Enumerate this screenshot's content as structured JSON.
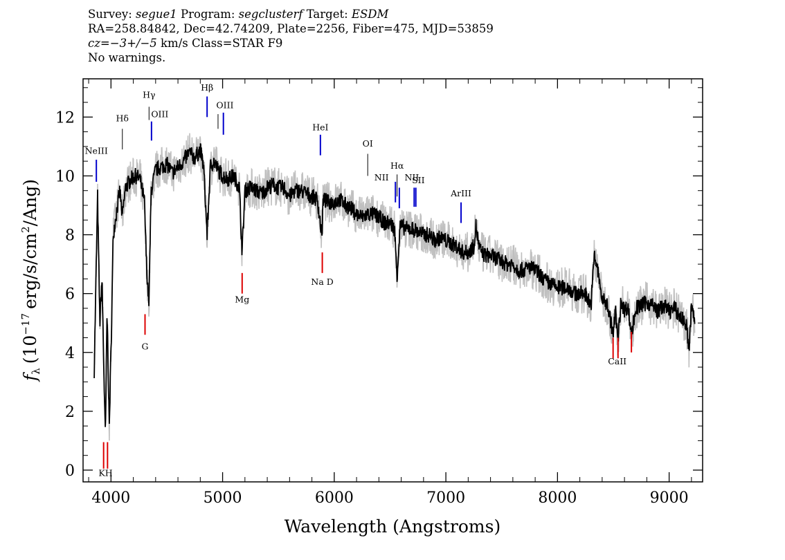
{
  "header": {
    "line1": {
      "survey_label": "Survey:",
      "survey": "segue1",
      "program_label": "Program:",
      "program": "segclusterf",
      "target_label": "Target:",
      "target": "ESDM"
    },
    "line2": "RA=258.84842, Dec=42.74209, Plate=2256, Fiber=475, MJD=53859",
    "line3": {
      "cz": "cz=−3+/−5",
      "units": "km/s",
      "class": "Class=STAR F9"
    },
    "line4": "No warnings."
  },
  "colors": {
    "flux": "#000000",
    "error": "#c0c0c0",
    "emission": "#0000cc",
    "absorption": "#dd0000",
    "neutral": "#000000"
  },
  "chart_data": {
    "type": "line",
    "xlabel": "Wavelength (Angstroms)",
    "ylabel_parts": {
      "f": "f",
      "sub": "λ",
      "pre": "(10",
      "exp": "−17",
      "mid": "erg/s/cm",
      "exp2": "2",
      "post": "/Ang)"
    },
    "xlim": [
      3750,
      9300
    ],
    "ylim": [
      -0.4,
      13.3
    ],
    "x_ticks": [
      4000,
      5000,
      6000,
      7000,
      8000,
      9000
    ],
    "x_tick_labels": [
      "4000",
      "5000",
      "6000",
      "7000",
      "8000",
      "9000"
    ],
    "y_ticks": [
      0,
      2,
      4,
      6,
      8,
      10,
      12
    ],
    "y_tick_labels": [
      "0",
      "2",
      "4",
      "6",
      "8",
      "10",
      "12"
    ],
    "series": [
      {
        "role": "flux",
        "x": [
          3850,
          3880,
          3900,
          3920,
          3935,
          3950,
          3965,
          3985,
          4000,
          4020,
          4050,
          4080,
          4101,
          4130,
          4180,
          4220,
          4260,
          4300,
          4320,
          4340,
          4360,
          4400,
          4450,
          4500,
          4550,
          4600,
          4650,
          4700,
          4750,
          4800,
          4830,
          4861,
          4890,
          4920,
          4960,
          5000,
          5050,
          5100,
          5150,
          5175,
          5200,
          5250,
          5300,
          5350,
          5400,
          5450,
          5500,
          5550,
          5600,
          5650,
          5700,
          5750,
          5800,
          5850,
          5890,
          5900,
          5950,
          6000,
          6050,
          6100,
          6150,
          6200,
          6250,
          6300,
          6350,
          6400,
          6450,
          6500,
          6540,
          6563,
          6590,
          6650,
          6700,
          6750,
          6800,
          6850,
          6900,
          6950,
          7000,
          7050,
          7100,
          7150,
          7200,
          7250,
          7270,
          7300,
          7350,
          7400,
          7450,
          7500,
          7550,
          7600,
          7650,
          7700,
          7750,
          7800,
          7850,
          7900,
          7950,
          8000,
          8050,
          8100,
          8150,
          8200,
          8250,
          8300,
          8330,
          8360,
          8400,
          8450,
          8498,
          8520,
          8542,
          8570,
          8600,
          8630,
          8662,
          8700,
          8750,
          8800,
          8850,
          8900,
          8950,
          9000,
          9050,
          9100,
          9150,
          9180,
          9200,
          9230
        ],
        "y": [
          3.4,
          9.3,
          5.0,
          6.5,
          3.6,
          1.1,
          5.4,
          1.5,
          4.0,
          8.0,
          8.8,
          9.5,
          8.6,
          9.6,
          9.9,
          10.0,
          9.9,
          9.1,
          6.8,
          5.7,
          9.5,
          10.2,
          10.3,
          10.4,
          10.1,
          10.3,
          10.5,
          10.8,
          10.6,
          10.9,
          10.3,
          8.0,
          10.3,
          10.5,
          10.2,
          10.0,
          9.9,
          10.0,
          9.6,
          7.4,
          9.5,
          9.6,
          9.5,
          9.4,
          9.6,
          9.7,
          9.6,
          9.6,
          9.3,
          9.5,
          9.5,
          9.4,
          9.3,
          9.2,
          7.9,
          9.2,
          9.1,
          9.1,
          9.2,
          9.0,
          8.9,
          8.7,
          8.6,
          8.7,
          8.7,
          8.6,
          8.4,
          8.4,
          8.2,
          6.6,
          8.3,
          8.2,
          8.2,
          8.1,
          8.0,
          8.0,
          7.8,
          7.9,
          7.8,
          7.7,
          7.6,
          7.4,
          7.4,
          7.6,
          8.3,
          7.5,
          7.3,
          7.3,
          7.2,
          7.1,
          7.0,
          7.0,
          6.8,
          6.8,
          6.9,
          6.8,
          6.6,
          6.4,
          6.3,
          6.2,
          6.2,
          6.2,
          6.0,
          6.0,
          6.0,
          5.6,
          7.3,
          6.8,
          5.8,
          5.6,
          4.6,
          5.4,
          4.4,
          5.8,
          5.4,
          5.6,
          4.6,
          5.5,
          5.6,
          5.7,
          5.6,
          5.4,
          5.6,
          5.4,
          5.5,
          5.2,
          5.0,
          4.1,
          5.6,
          5.0
        ]
      }
    ],
    "line_markers": [
      {
        "label": "NeIII",
        "x": 3869,
        "kind": "emission",
        "label_y": 10.75,
        "y0": 9.8,
        "y1": 10.55
      },
      {
        "label": "K",
        "x": 3934,
        "kind": "absorption",
        "label_y": -0.2,
        "y0": 0.05,
        "y1": 0.95
      },
      {
        "label": "H",
        "x": 3969,
        "kind": "absorption",
        "label_y": -0.2,
        "y0": 0.05,
        "y1": 0.95
      },
      {
        "label": "Hδ",
        "x": 4102,
        "kind": "neutral",
        "label_y": 11.85,
        "y0": 10.9,
        "y1": 11.6
      },
      {
        "label": "G",
        "x": 4305,
        "kind": "absorption",
        "label_y": 4.1,
        "y0": 4.6,
        "y1": 5.3
      },
      {
        "label": "Hγ",
        "x": 4341,
        "kind": "neutral",
        "label_y": 12.65,
        "y0": 11.9,
        "y1": 12.35
      },
      {
        "label": "OIII",
        "x": 4363,
        "kind": "emission",
        "label_y": 12.0,
        "y0": 11.2,
        "y1": 11.85
      },
      {
        "label": "Hβ",
        "x": 4861,
        "kind": "emission",
        "label_y": 12.9,
        "y0": 12.0,
        "y1": 12.7
      },
      {
        "label": "OIII",
        "x": 4959,
        "kind": "neutral",
        "label_y": 12.3,
        "y0": 11.6,
        "y1": 12.1
      },
      {
        "label": "OIII",
        "x": 5007,
        "kind": "emission",
        "label_y": 12.3,
        "y0": 11.4,
        "y1": 12.15
      },
      {
        "label": "Mg",
        "x": 5175,
        "kind": "absorption",
        "label_y": 5.7,
        "y0": 6.0,
        "y1": 6.7
      },
      {
        "label": "HeI",
        "x": 5876,
        "kind": "emission",
        "label_y": 11.55,
        "y0": 10.7,
        "y1": 11.4
      },
      {
        "label": "Na D",
        "x": 5893,
        "kind": "absorption",
        "label_y": 6.3,
        "y0": 6.7,
        "y1": 7.4
      },
      {
        "label": "OI",
        "x": 6300,
        "kind": "neutral",
        "label_y": 11.0,
        "y0": 10.0,
        "y1": 10.75
      },
      {
        "label": "NII",
        "x": 6548,
        "kind": "emission",
        "label_y": 9.85,
        "y0": 9.1,
        "y1": 9.8
      },
      {
        "label": "Hα",
        "x": 6563,
        "kind": "neutral",
        "label_y": 10.25,
        "y0": 9.3,
        "y1": 10.05
      },
      {
        "label": "NII",
        "x": 6583,
        "kind": "emission",
        "label_y": 9.85,
        "y0": 8.9,
        "y1": 9.6
      },
      {
        "label": "SII",
        "x": 6716,
        "kind": "emission",
        "label_y": 9.75,
        "y0": 8.95,
        "y1": 9.6
      },
      {
        "label": "SII",
        "x": 6731,
        "kind": "emission",
        "label_y": 9.75,
        "y0": 8.95,
        "y1": 9.6
      },
      {
        "label": "ArIII",
        "x": 7136,
        "kind": "emission",
        "label_y": 9.3,
        "y0": 8.4,
        "y1": 9.1
      },
      {
        "label": "CaII",
        "x": 8498,
        "kind": "absorption",
        "label_y": 3.6,
        "y0": 3.8,
        "y1": 4.5
      },
      {
        "label": "CaII",
        "x": 8542,
        "kind": "absorption",
        "label_y": 3.6,
        "y0": 3.8,
        "y1": 4.5
      },
      {
        "label": "CaII",
        "x": 8662,
        "kind": "absorption",
        "label_y": 3.6,
        "y0": 4.0,
        "y1": 4.7
      }
    ]
  }
}
